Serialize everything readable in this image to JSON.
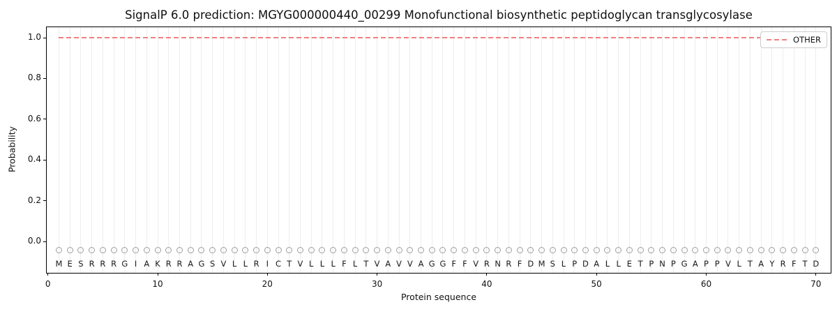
{
  "title": "SignalP 6.0 prediction: MGYG000000440_00299 Monofunctional biosynthetic peptidoglycan transglycosylase",
  "colors": {
    "other_line": "#f08080",
    "grid": "#ededed",
    "marker_edge": "#9e9e9e",
    "spine": "#000000",
    "text": "#111111",
    "legend_border": "#cccccc",
    "background": "#ffffff"
  },
  "legend": {
    "position": "upper right",
    "items": [
      {
        "label": "OTHER",
        "color": "#f08080",
        "line_style": "dashed"
      }
    ]
  },
  "chart_data": {
    "type": "line",
    "title": "SignalP 6.0 prediction: MGYG000000440_00299 Monofunctional biosynthetic peptidoglycan transglycosylase",
    "xlabel": "Protein sequence",
    "ylabel": "Probability",
    "xlim": [
      0,
      71.5
    ],
    "ylim": [
      -0.16,
      1.05
    ],
    "xticks": [
      0,
      10,
      20,
      30,
      40,
      50,
      60,
      70
    ],
    "yticks": [
      0.0,
      0.2,
      0.4,
      0.6,
      0.8,
      1.0
    ],
    "ytick_labels": [
      "0.0",
      "0.2",
      "0.4",
      "0.6",
      "0.8",
      "1.0"
    ],
    "grid": "light vertical gridline at every residue position 1-70, no horizontal grid",
    "legend_position": "upper right",
    "sequence": "MESRRRGIAKRRAGSVLLRICTVLLLFLTVAVVAGGFFVRNRFDMSLPDALLETPNPGAPPVLTAYRFTD",
    "residue_marker": {
      "symbol": "open-circle",
      "y": -0.042,
      "edge_color": "#9e9e9e"
    },
    "residue_letter_y": -0.115,
    "series": [
      {
        "name": "OTHER",
        "line_style": "dashed",
        "color": "#f08080",
        "constant_value": 1.0,
        "x": [
          1,
          2,
          3,
          4,
          5,
          6,
          7,
          8,
          9,
          10,
          11,
          12,
          13,
          14,
          15,
          16,
          17,
          18,
          19,
          20,
          21,
          22,
          23,
          24,
          25,
          26,
          27,
          28,
          29,
          30,
          31,
          32,
          33,
          34,
          35,
          36,
          37,
          38,
          39,
          40,
          41,
          42,
          43,
          44,
          45,
          46,
          47,
          48,
          49,
          50,
          51,
          52,
          53,
          54,
          55,
          56,
          57,
          58,
          59,
          60,
          61,
          62,
          63,
          64,
          65,
          66,
          67,
          68,
          69,
          70
        ],
        "values": [
          1.0,
          1.0,
          1.0,
          1.0,
          1.0,
          1.0,
          1.0,
          1.0,
          1.0,
          1.0,
          1.0,
          1.0,
          1.0,
          1.0,
          1.0,
          1.0,
          1.0,
          1.0,
          1.0,
          1.0,
          1.0,
          1.0,
          1.0,
          1.0,
          1.0,
          1.0,
          1.0,
          1.0,
          1.0,
          1.0,
          1.0,
          1.0,
          1.0,
          1.0,
          1.0,
          1.0,
          1.0,
          1.0,
          1.0,
          1.0,
          1.0,
          1.0,
          1.0,
          1.0,
          1.0,
          1.0,
          1.0,
          1.0,
          1.0,
          1.0,
          1.0,
          1.0,
          1.0,
          1.0,
          1.0,
          1.0,
          1.0,
          1.0,
          1.0,
          1.0,
          1.0,
          1.0,
          1.0,
          1.0,
          1.0,
          1.0,
          1.0,
          1.0,
          1.0,
          1.0
        ]
      }
    ]
  }
}
